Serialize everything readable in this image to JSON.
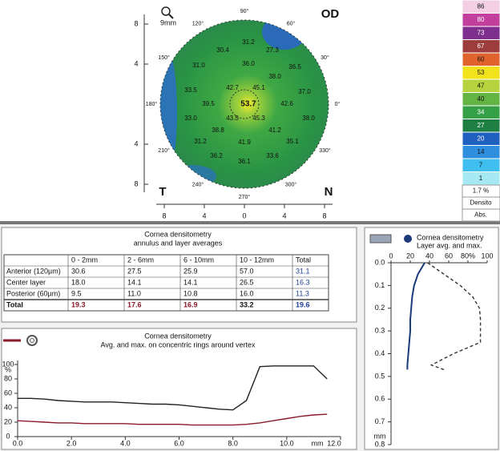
{
  "map": {
    "eye": "OD",
    "zoom": "9mm",
    "temporal": "T",
    "nasal": "N",
    "angles": [
      "90°",
      "60°",
      "30°",
      "0°",
      "330°",
      "300°",
      "270°",
      "240°",
      "210°",
      "180°",
      "150°",
      "120°"
    ],
    "values": [
      "31.2",
      "30.4",
      "27.3",
      "31.0",
      "36.0",
      "36.5",
      "38.0",
      "33.5",
      "42.7",
      "45.1",
      "37.0",
      "39.5",
      "53.7",
      "42.6",
      "33.0",
      "43.5",
      "45.3",
      "38.0",
      "38.8",
      "41.2",
      "31.2",
      "41.9",
      "35.1",
      "36.2",
      "33.6",
      "36.1"
    ],
    "yticks": [
      8,
      4,
      {
        "value": -4,
        "label": "4"
      },
      {
        "value": -8,
        "label": "8"
      }
    ],
    "xticks": [
      {
        "value": -8,
        "label": "8"
      },
      {
        "value": -4,
        "label": "4"
      },
      0,
      4,
      8
    ]
  },
  "scale": {
    "labels": [
      86,
      80,
      73,
      67,
      60,
      53,
      47,
      40,
      34,
      27,
      20,
      14,
      7,
      1
    ],
    "colors": [
      "#f2cfe2",
      "#c33f9e",
      "#7e2e8c",
      "#9c3c3c",
      "#e0622c",
      "#f2e21c",
      "#b6d33e",
      "#63b443",
      "#35a046",
      "#1f7f42",
      "#1f5fbf",
      "#2f8fdf",
      "#3fbff0",
      "#a6e9f2"
    ],
    "percent": "1.7 %",
    "mode": "Densito",
    "unit": "Abs."
  },
  "table": {
    "title": "Cornea densitometry",
    "subtitle": "annulus and layer averages",
    "columns": [
      "0 - 2mm",
      "2 - 6mm",
      "6 - 10mm",
      "10 - 12mm",
      "Total"
    ],
    "rows": [
      {
        "label": "Anterior (120µm)",
        "cells": [
          "30.6",
          "27.5",
          "25.9",
          "57.0",
          "31.1"
        ]
      },
      {
        "label": "Center layer",
        "cells": [
          "18.0",
          "14.1",
          "14.1",
          "26.5",
          "16.3"
        ]
      },
      {
        "label": "Posterior (60µm)",
        "cells": [
          "9.5",
          "11.0",
          "10.8",
          "16.0",
          "11.3"
        ]
      },
      {
        "label": "Total",
        "cells": [
          "19.3",
          "17.6",
          "16.9",
          "33.2",
          "19.6"
        ]
      }
    ]
  },
  "chart_data": [
    {
      "type": "line",
      "title": "Cornea densitometry",
      "subtitle": "Avg. and max. on concentric rings around vertex",
      "x": [
        0,
        0.5,
        1,
        1.5,
        2,
        2.5,
        3,
        3.5,
        4,
        4.5,
        5,
        5.5,
        6,
        6.5,
        7,
        7.5,
        8,
        8.5,
        9,
        9.5,
        10,
        10.5,
        11,
        11.5
      ],
      "series": [
        {
          "color": "#222222",
          "values": [
            53,
            53,
            52,
            50,
            49,
            48,
            48,
            48,
            47,
            46,
            45,
            45,
            44,
            42,
            40,
            38,
            37,
            50,
            97,
            98,
            98,
            98,
            98,
            80
          ]
        },
        {
          "color": "#8b1a2b",
          "values": [
            22,
            21,
            20,
            19,
            19,
            18,
            18,
            18,
            18,
            17,
            17,
            17,
            17,
            16,
            16,
            16,
            16,
            17,
            19,
            22,
            25,
            28,
            30,
            31
          ]
        }
      ],
      "xlabel": "mm",
      "ylabel": "%",
      "xlim": [
        0,
        12
      ],
      "ylim": [
        0,
        100
      ],
      "xticks": [
        {
          "value": 0,
          "label": "0.0"
        },
        {
          "value": 2,
          "label": "2.0"
        },
        {
          "value": 4,
          "label": "4.0"
        },
        {
          "value": 6,
          "label": "6.0"
        },
        {
          "value": 8,
          "label": "8.0"
        },
        {
          "value": 10,
          "label": "10.0"
        },
        {
          "value": 12,
          "label": "12.0"
        }
      ],
      "yticks": [
        0,
        20,
        40,
        60,
        80,
        100
      ]
    },
    {
      "type": "depth-line",
      "title": "Cornea densitometry",
      "subtitle": "Layer avg. and max.",
      "y": [
        0,
        0.05,
        0.1,
        0.15,
        0.2,
        0.25,
        0.3,
        0.35,
        0.4,
        0.45,
        0.47
      ],
      "series": [
        {
          "color": "#1a3a7a",
          "dash": false,
          "values": [
            35,
            28,
            24,
            22,
            21,
            20,
            20,
            19,
            18,
            17,
            17
          ]
        },
        {
          "color": "#333333",
          "dash": true,
          "values": [
            38,
            55,
            72,
            85,
            92,
            93,
            93,
            93,
            65,
            42,
            55
          ]
        }
      ],
      "ylabel": "mm",
      "xlim": [
        0,
        100
      ],
      "ylim": [
        0,
        0.8
      ],
      "xticks": [
        0,
        20,
        40,
        60,
        {
          "value": 80,
          "label": "80%"
        },
        100
      ],
      "yticks": [
        {
          "value": 0,
          "label": "0.0"
        },
        0.1,
        0.2,
        0.3,
        0.4,
        0.5,
        0.6,
        0.7,
        0.8
      ]
    }
  ]
}
